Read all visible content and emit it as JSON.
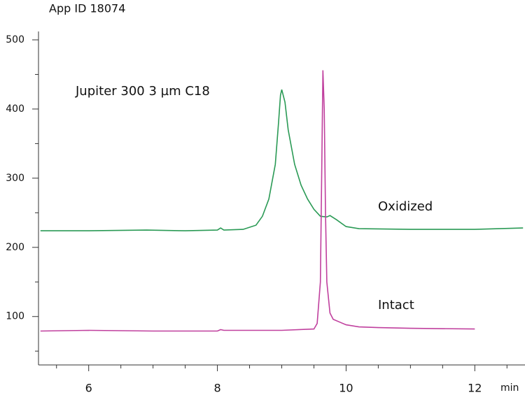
{
  "chart_data": {
    "type": "line",
    "title": "App ID 18074",
    "annotation": "Jupiter 300 3 µm C18",
    "x_label": "min",
    "series": [
      {
        "name": "Oxidized",
        "color": "#2a9a55",
        "x": [
          5.25,
          6.0,
          6.9,
          7.5,
          8.0,
          8.05,
          8.1,
          8.4,
          8.6,
          8.7,
          8.8,
          8.9,
          8.95,
          8.98,
          9.0,
          9.05,
          9.1,
          9.2,
          9.3,
          9.4,
          9.5,
          9.6,
          9.7,
          9.75,
          9.85,
          10.0,
          10.2,
          11.0,
          12.0,
          12.75
        ],
        "values": [
          224,
          224,
          225,
          224,
          225,
          228,
          225,
          226,
          232,
          245,
          270,
          320,
          380,
          420,
          428,
          410,
          370,
          320,
          290,
          270,
          255,
          245,
          244,
          246,
          240,
          230,
          227,
          226,
          226,
          228
        ]
      },
      {
        "name": "Intact",
        "color": "#c0409e",
        "x": [
          5.25,
          6.0,
          7.0,
          8.0,
          8.05,
          8.1,
          9.0,
          9.5,
          9.55,
          9.6,
          9.62,
          9.64,
          9.66,
          9.68,
          9.7,
          9.75,
          9.8,
          9.9,
          10.0,
          10.2,
          10.5,
          11.0,
          12.0
        ],
        "values": [
          79,
          80,
          79,
          79,
          81,
          80,
          80,
          82,
          90,
          150,
          300,
          456,
          400,
          250,
          150,
          105,
          96,
          92,
          88,
          85,
          84,
          83,
          82
        ]
      }
    ],
    "xlim": [
      5.22,
      12.78
    ],
    "xticks": [
      6,
      8,
      10,
      12
    ],
    "x_minor_ticks": [
      5.5,
      6.5,
      7,
      7.5,
      8.5,
      9,
      9.5,
      10.5,
      11,
      11.5,
      12.5
    ],
    "ylim": [
      30,
      500
    ],
    "yticks": [
      100,
      200,
      300,
      400,
      500
    ],
    "y_minor_ticks": [
      50,
      150,
      250,
      350,
      450
    ],
    "grid": false
  }
}
